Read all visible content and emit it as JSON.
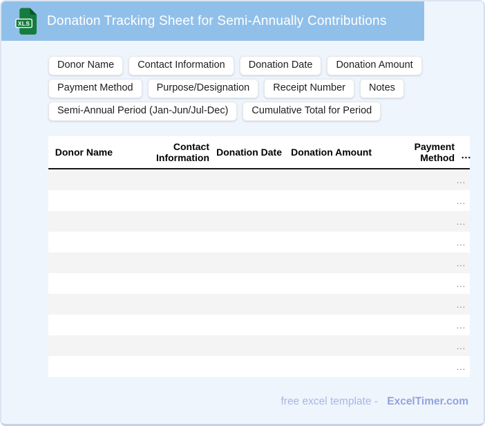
{
  "window": {
    "background_color": "#eff5fd",
    "border_color": "#dde5f2"
  },
  "header": {
    "title": "Donation Tracking Sheet for Semi-Annually Contributions",
    "bar_color": "#90c0ea",
    "text_color": "#ffffff",
    "icon": {
      "name": "xls-file-icon",
      "label": "XLS",
      "color": "#157c3e",
      "fold_color": "#0b572a"
    }
  },
  "field_chips": [
    "Donor Name",
    "Contact Information",
    "Donation Date",
    "Donation Amount",
    "Payment Method",
    "Purpose/Designation",
    "Receipt Number",
    "Notes",
    "Semi-Annual Period (Jan-Jun/Jul-Dec)",
    "Cumulative Total for Period"
  ],
  "table": {
    "columns": [
      "Donor Name",
      "Contact Information",
      "Donation Date",
      "Donation Amount",
      "Payment Method",
      "…"
    ],
    "rows": [
      "…",
      "…",
      "…",
      "…",
      "…",
      "…",
      "…",
      "…",
      "…",
      "…"
    ],
    "stripe_color": "#f4f4f4",
    "header_border_color": "#161616"
  },
  "footer": {
    "tagline": "free excel template -",
    "brand": "ExcelTimer.com"
  }
}
